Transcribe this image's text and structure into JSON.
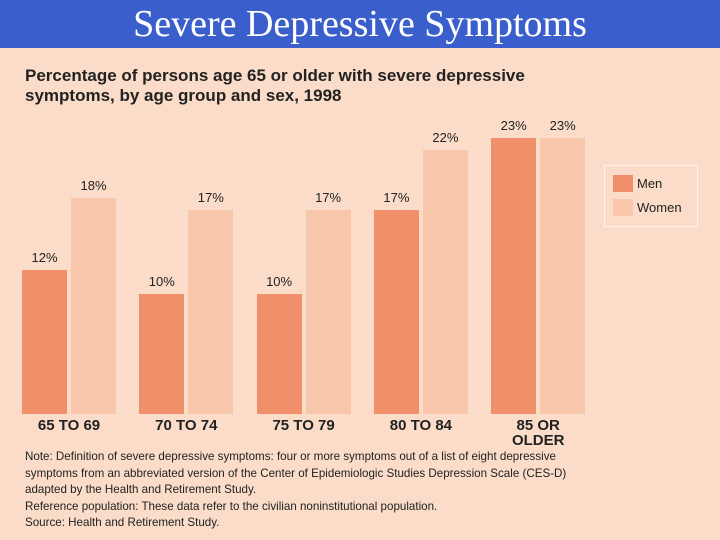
{
  "slide_title": "Severe Depressive Symptoms",
  "chart_data": {
    "type": "bar",
    "title": [
      "Percentage of persons age 65 or older with severe depressive",
      "symptoms, by age group and sex, 1998"
    ],
    "categories": [
      "65 TO 69",
      "70 TO 74",
      "75 TO 79",
      "80 TO 84",
      "85 OR OLDER"
    ],
    "series": [
      {
        "name": "Men",
        "color": "#f0906a",
        "values": [
          12,
          10,
          10,
          17,
          23
        ],
        "value_labels": [
          "12%",
          "10%",
          "10%",
          "17%",
          "23%"
        ]
      },
      {
        "name": "Women",
        "color": "#f8c6ab",
        "values": [
          18,
          17,
          17,
          22,
          23
        ],
        "value_labels": [
          "18%",
          "17%",
          "17%",
          "22%",
          "23%"
        ]
      }
    ],
    "legend": "right",
    "notes": [
      "Note: Definition of severe depressive symptoms: four or more symptoms out of a list of eight depressive",
      "symptoms from an abbreviated version of the Center of Epidemiologic Studies Depression Scale (CES-D)",
      "adapted by the Health and Retirement Study.",
      "Reference population: These data refer to the civilian noninstitutional population.",
      "Source: Health and Retirement Study."
    ]
  }
}
